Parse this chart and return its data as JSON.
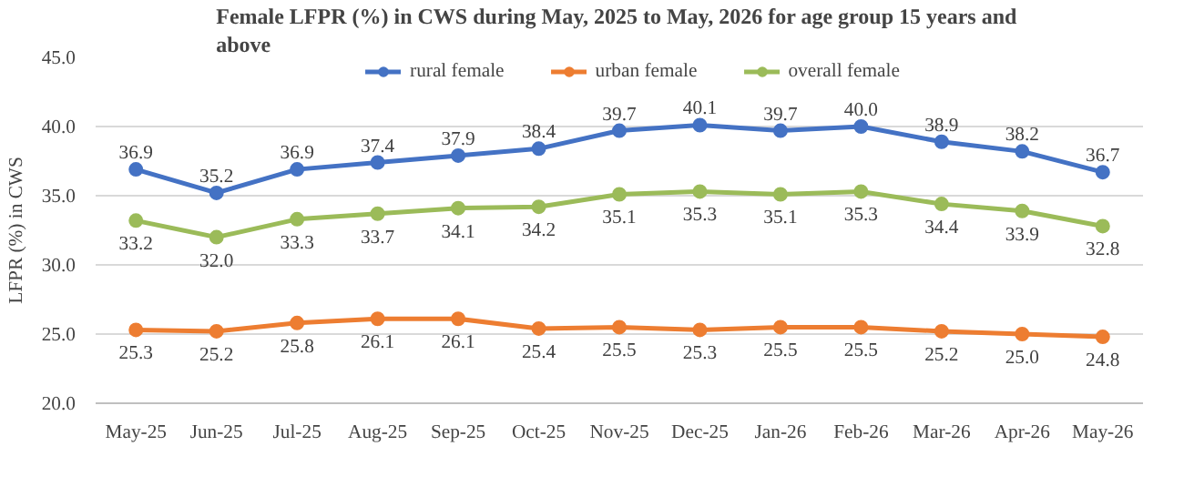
{
  "chart_data": {
    "type": "line",
    "title": "Female  LFPR (%) in CWS during May, 2025 to May, 2026 for age group 15 years and above",
    "ylabel": "LFPR (%) in CWS",
    "categories": [
      "May-25",
      "Jun-25",
      "Jul-25",
      "Aug-25",
      "Sep-25",
      "Oct-25",
      "Nov-25",
      "Dec-25",
      "Jan-26",
      "Feb-26",
      "Mar-26",
      "Apr-26",
      "May-26"
    ],
    "series": [
      {
        "name": "rural female",
        "color": "#4472c4",
        "values": [
          36.9,
          35.2,
          36.9,
          37.4,
          37.9,
          38.4,
          39.7,
          40.1,
          39.7,
          40.0,
          38.9,
          38.2,
          36.7
        ],
        "value_labels": [
          "36.9",
          "35.2",
          "36.9",
          "37.4",
          "37.9",
          "38.4",
          "39.7",
          "40.1",
          "39.7",
          "40.0",
          "38.9",
          "38.2",
          "36.7"
        ]
      },
      {
        "name": "urban female",
        "color": "#ed7d31",
        "values": [
          25.3,
          25.2,
          25.8,
          26.1,
          26.1,
          25.4,
          25.5,
          25.3,
          25.5,
          25.5,
          25.2,
          25.0,
          24.8
        ],
        "value_labels": [
          "25.3",
          "25.2",
          "25.8",
          "26.1",
          "26.1",
          "25.4",
          "25.5",
          "25.3",
          "25.5",
          "25.5",
          "25.2",
          "25.0",
          "24.8"
        ]
      },
      {
        "name": "overall female",
        "color": "#9bbb59",
        "values": [
          33.2,
          32.0,
          33.3,
          33.7,
          34.1,
          34.2,
          35.1,
          35.3,
          35.1,
          35.3,
          34.4,
          33.9,
          32.8
        ],
        "value_labels": [
          "33.2",
          "32.0",
          "33.3",
          "33.7",
          "34.1",
          "34.2",
          "35.1",
          "35.3",
          "35.1",
          "35.3",
          "34.4",
          "33.9",
          "32.8"
        ]
      }
    ],
    "ylim": [
      20,
      45
    ],
    "yticks": [
      {
        "value": 20,
        "label": "20.0"
      },
      {
        "value": 25,
        "label": "25.0"
      },
      {
        "value": 30,
        "label": "30.0"
      },
      {
        "value": 35,
        "label": "35.0"
      },
      {
        "value": 40,
        "label": "40.0"
      },
      {
        "value": 45,
        "label": "45.0"
      }
    ],
    "grid": "y",
    "legend": "top",
    "marker": "circle",
    "line_style": "solid"
  }
}
